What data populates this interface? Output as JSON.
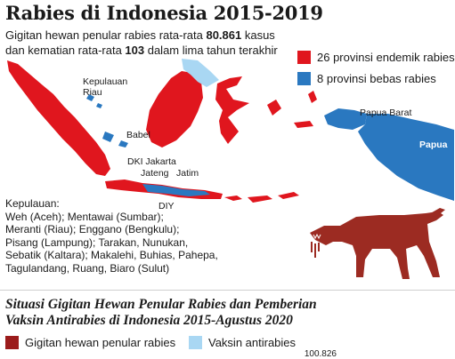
{
  "header": {
    "title": "Rabies di Indonesia 2015-2019",
    "subtitle_part1": "Gigitan hewan penular rabies rata-rata ",
    "subtitle_num1": "80.861",
    "subtitle_part2": " kasus",
    "subtitle_part3": "dan kematian rata-rata ",
    "subtitle_num2": "103",
    "subtitle_part4": " dalam lima tahun terakhir"
  },
  "map": {
    "legend": [
      {
        "label": "26 provinsi endemik rabies",
        "color": "#e0161e"
      },
      {
        "label": "8 provinsi bebas rabies",
        "color": "#2a78c0"
      }
    ],
    "labels": {
      "kepulauan_riau": "Kepulauan\nRiau",
      "babel": "Babel",
      "dki": "DKI Jakarta",
      "jateng": "Jateng",
      "jatim": "Jatim",
      "diy": "DIY",
      "papua_barat": "Papua Barat",
      "papua": "Papua"
    },
    "colors": {
      "endemic": "#e0161e",
      "free": "#2a78c0",
      "borneo_other": "#a9d7f3"
    }
  },
  "islands": {
    "title": "Kepulauan:",
    "lines": [
      "Weh (Aceh); Mentawai (Sumbar);",
      "Meranti (Riau); Enggano (Bengkulu);",
      "Pisang (Lampung); Tarakan, Nunukan,",
      "Sebatik (Kaltara); Makalehi, Buhias, Pahepa,",
      "Tagulandang, Ruang, Biaro (Sulut)"
    ]
  },
  "section": {
    "title_line1": "Situasi Gigitan Hewan Penular Rabies dan Pemberian",
    "title_line2": "Vaksin Antirabies di Indonesia 2015-Agustus 2020"
  },
  "chart_data": {
    "type": "bar",
    "series": [
      {
        "name": "Gigitan hewan penular rabies",
        "color": "#9b1b1b"
      },
      {
        "name": "Vaksin antirabies",
        "color": "#a9d7f3"
      }
    ],
    "visible_value_label": "100.826"
  },
  "illustration": {
    "dog_color": "#9c2b22"
  }
}
